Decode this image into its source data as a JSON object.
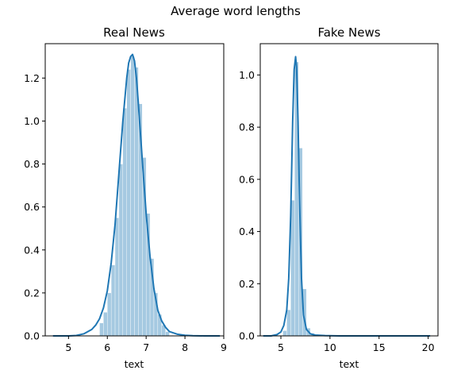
{
  "figure": {
    "suptitle": "Average word lengths"
  },
  "colors": {
    "line": "#1f77b4",
    "fill": "#1f77b4",
    "fill_opacity": 0.4,
    "bar_edge": "#ffffff"
  },
  "chart_data": [
    {
      "type": "area",
      "title": "Real News",
      "xlabel": "text",
      "ylabel": "",
      "xlim": [
        4.4,
        9.0
      ],
      "ylim": [
        0,
        1.36
      ],
      "xticks": [
        5,
        6,
        7,
        8,
        9
      ],
      "yticks": [
        0.0,
        0.2,
        0.4,
        0.6,
        0.8,
        1.0,
        1.2
      ],
      "grid": false,
      "histogram": {
        "bin_edges": [
          5.8,
          5.9,
          6.0,
          6.1,
          6.2,
          6.3,
          6.4,
          6.5,
          6.6,
          6.7,
          6.8,
          6.9,
          7.0,
          7.1,
          7.2,
          7.3,
          7.4,
          7.5,
          7.6
        ],
        "heights": [
          0.06,
          0.11,
          0.2,
          0.33,
          0.55,
          0.8,
          1.06,
          1.24,
          1.3,
          1.25,
          1.08,
          0.83,
          0.57,
          0.36,
          0.2,
          0.1,
          0.05,
          0.02
        ]
      },
      "kde": {
        "x": [
          4.6,
          4.8,
          5.0,
          5.2,
          5.4,
          5.6,
          5.7,
          5.8,
          5.9,
          6.0,
          6.1,
          6.2,
          6.3,
          6.4,
          6.5,
          6.55,
          6.6,
          6.65,
          6.7,
          6.75,
          6.8,
          6.9,
          7.0,
          7.1,
          7.2,
          7.3,
          7.4,
          7.5,
          7.6,
          7.8,
          8.0,
          8.2,
          8.5,
          8.9
        ],
        "y": [
          0.0,
          0.0,
          0.0,
          0.002,
          0.01,
          0.03,
          0.05,
          0.08,
          0.13,
          0.21,
          0.34,
          0.52,
          0.76,
          1.0,
          1.2,
          1.27,
          1.3,
          1.31,
          1.28,
          1.2,
          1.08,
          0.82,
          0.57,
          0.37,
          0.22,
          0.12,
          0.07,
          0.04,
          0.02,
          0.008,
          0.003,
          0.001,
          0.0,
          0.0
        ]
      }
    },
    {
      "type": "area",
      "title": "Fake News",
      "xlabel": "text",
      "ylabel": "",
      "xlim": [
        2.9,
        21.0
      ],
      "ylim": [
        0,
        1.12
      ],
      "xticks": [
        5,
        10,
        15,
        20
      ],
      "yticks": [
        0.0,
        0.2,
        0.4,
        0.6,
        0.8,
        1.0
      ],
      "grid": false,
      "histogram": {
        "bin_edges": [
          5.2,
          5.6,
          6.0,
          6.4,
          6.8,
          7.2,
          7.6,
          8.0,
          8.4
        ],
        "heights": [
          0.02,
          0.1,
          0.52,
          1.05,
          0.72,
          0.18,
          0.03,
          0.01
        ]
      },
      "kde": {
        "x": [
          3.2,
          4.0,
          4.6,
          5.0,
          5.3,
          5.6,
          5.8,
          6.0,
          6.2,
          6.35,
          6.5,
          6.6,
          6.75,
          6.9,
          7.1,
          7.3,
          7.6,
          8.0,
          8.5,
          9.5,
          11,
          14,
          17,
          20.2
        ],
        "y": [
          0.0,
          0.0,
          0.005,
          0.015,
          0.04,
          0.1,
          0.22,
          0.46,
          0.82,
          1.02,
          1.07,
          1.03,
          0.82,
          0.52,
          0.22,
          0.08,
          0.025,
          0.008,
          0.003,
          0.001,
          0.0,
          0.0,
          0.0,
          0.0
        ]
      }
    }
  ]
}
